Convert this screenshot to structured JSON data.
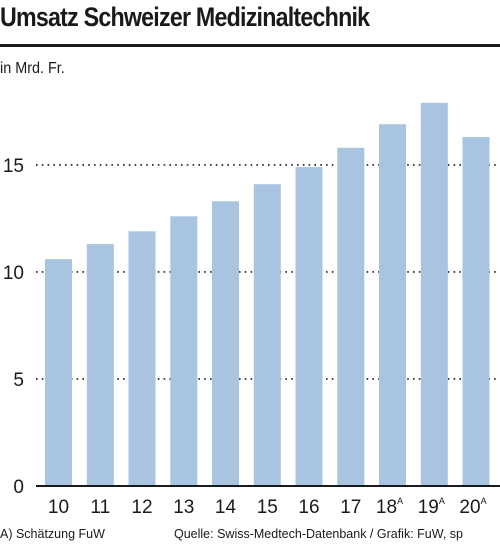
{
  "chart_data": {
    "type": "bar",
    "title": "Umsatz Schweizer Medizinaltechnik",
    "ylabel": "in Mrd. Fr.",
    "xlabel": "",
    "categories": [
      "10",
      "11",
      "12",
      "13",
      "14",
      "15",
      "16",
      "17",
      "18",
      "19",
      "20"
    ],
    "category_superscripts": [
      "",
      "",
      "",
      "",
      "",
      "",
      "",
      "",
      "A",
      "A",
      "A"
    ],
    "values": [
      10.6,
      11.3,
      11.9,
      12.6,
      13.3,
      14.1,
      14.9,
      15.8,
      16.9,
      17.9,
      16.3
    ],
    "ylim": [
      0,
      18.5
    ],
    "yticks": [
      "0",
      "5",
      "10",
      "15"
    ],
    "grid": true,
    "bar_color": "#a8c4e0",
    "footnote": "A) Schätzung FuW",
    "source": "Quelle:  Swiss-Medtech-Datenbank / Grafik: FuW, sp"
  }
}
